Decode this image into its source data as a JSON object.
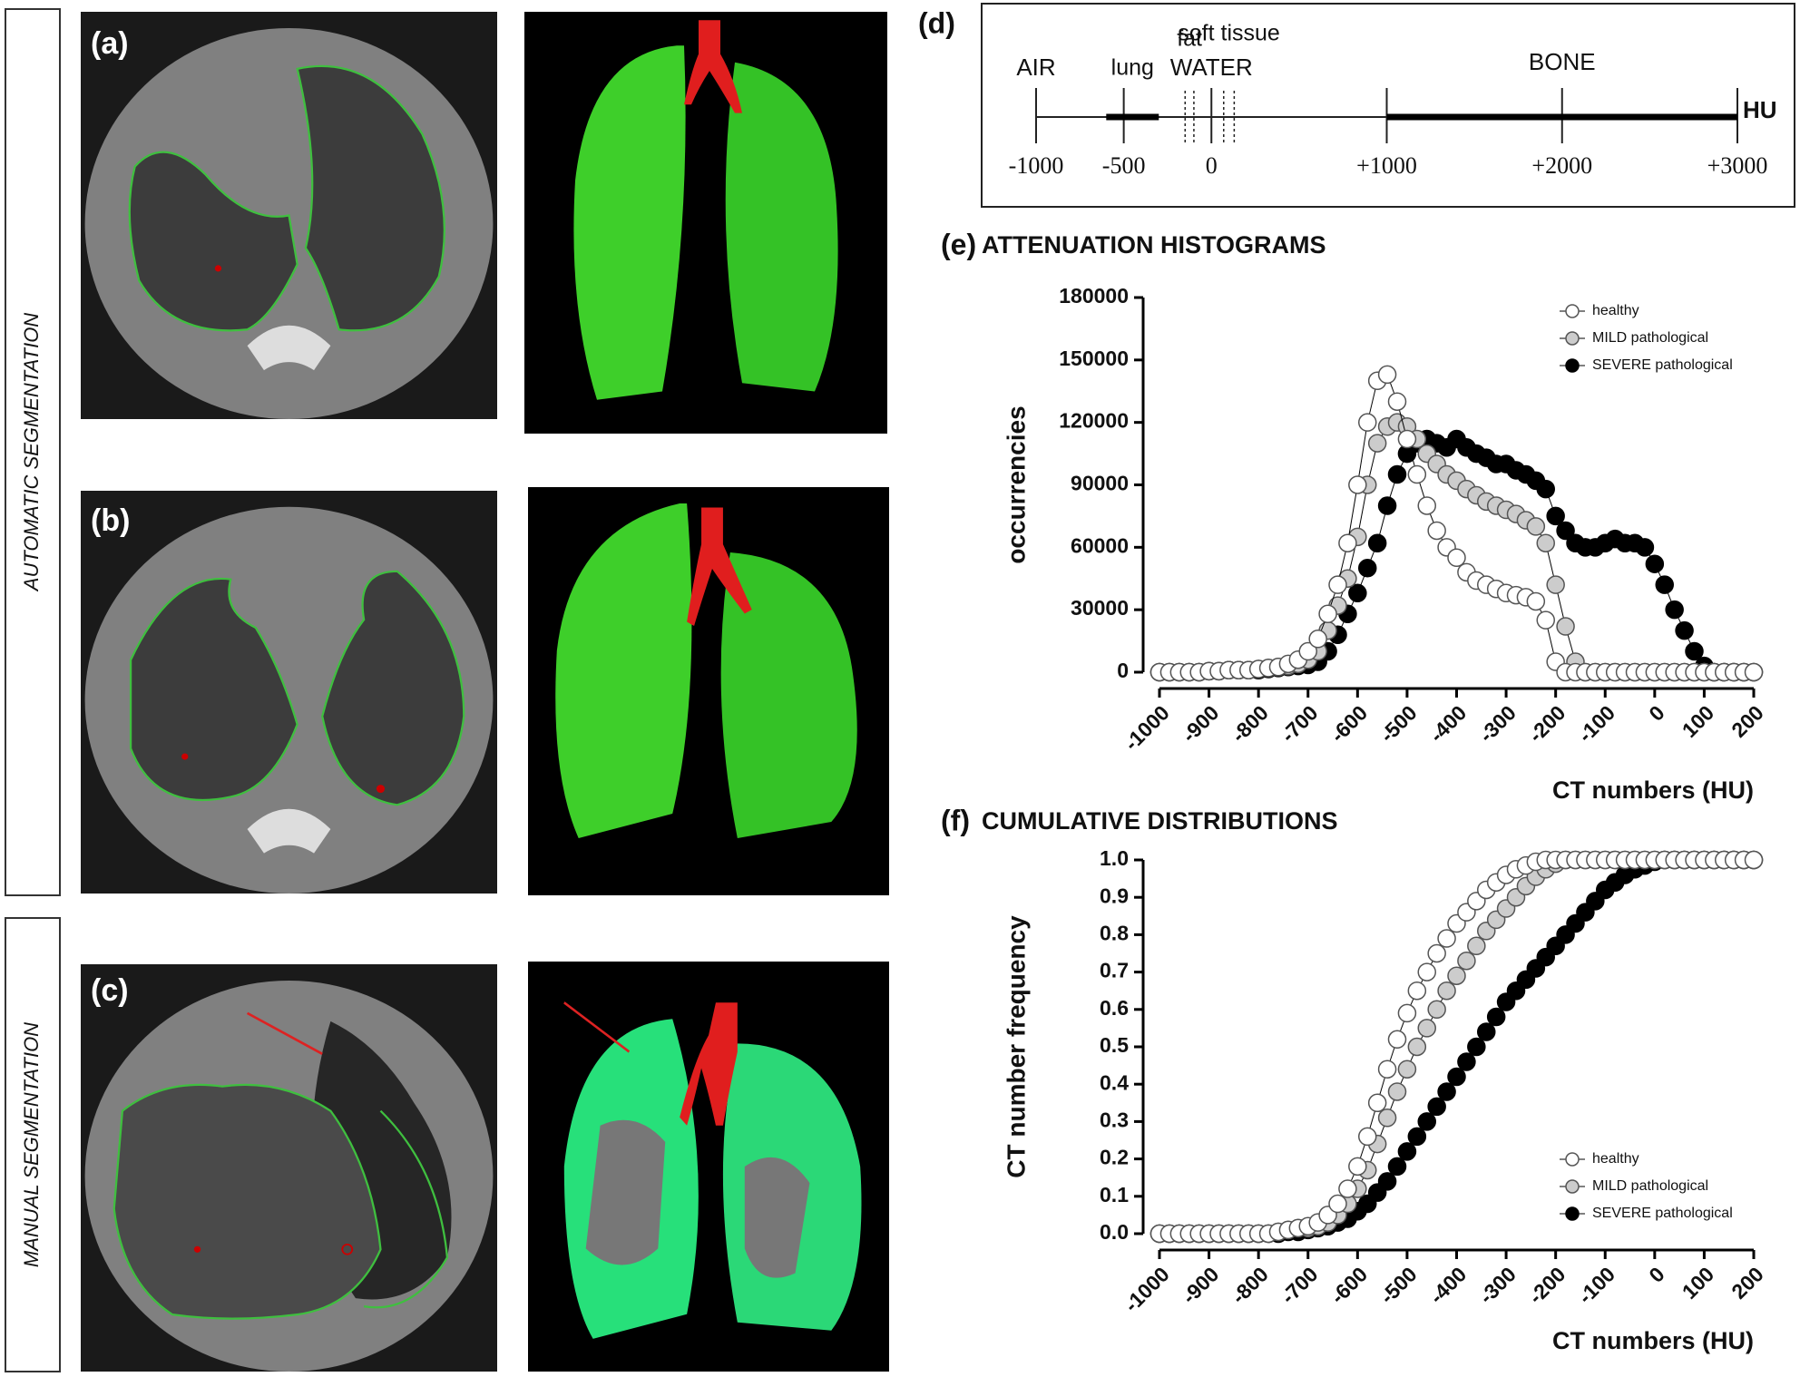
{
  "side_labels": [
    "AUTOMATIC SEGMENTATION",
    "MANUAL SEGMENTATION"
  ],
  "panels": [
    "(a)",
    "(b)",
    "(c)"
  ],
  "scale_panel": {
    "panel": "(d)",
    "unit": "HU",
    "xlim": [
      -1000,
      3000
    ],
    "ticks": [
      -1000,
      -500,
      0,
      {
        "value": 1000,
        "label": "+1000"
      },
      {
        "value": 2000,
        "label": "+2000"
      },
      {
        "value": 3000,
        "label": "+3000"
      }
    ],
    "markers": [
      {
        "label": "AIR",
        "value": -1000
      },
      {
        "label": "WATER",
        "value": 0
      }
    ],
    "regions": [
      {
        "label": "lung",
        "range": [
          -600,
          -300
        ],
        "style": "thick"
      },
      {
        "label": "fat",
        "range": [
          -150,
          -100
        ],
        "style": "dashed"
      },
      {
        "label": "soft tissue",
        "range": [
          70,
          130
        ],
        "style": "dashed"
      },
      {
        "label": "BONE",
        "range": [
          1000,
          3000
        ],
        "style": "thick"
      }
    ]
  },
  "chart_data": [
    {
      "type": "line",
      "panel": "(e)",
      "title": "ATTENUATION HISTOGRAMS",
      "x_label": "CT numbers (HU)",
      "y_label": "occurrencies",
      "legend": "upper right",
      "xlim": [
        -1000,
        200
      ],
      "ylim": [
        0,
        180000
      ],
      "xticks": [
        -1000,
        -900,
        -800,
        -700,
        -600,
        -500,
        -400,
        -300,
        -200,
        -100,
        0,
        100,
        200
      ],
      "yticks": [
        0,
        30000,
        60000,
        90000,
        120000,
        150000,
        180000
      ],
      "x": [
        -1000,
        -980,
        -960,
        -940,
        -920,
        -900,
        -880,
        -860,
        -840,
        -820,
        -800,
        -780,
        -760,
        -740,
        -720,
        -700,
        -680,
        -660,
        -640,
        -620,
        -600,
        -580,
        -560,
        -540,
        -520,
        -500,
        -480,
        -460,
        -440,
        -420,
        -400,
        -380,
        -360,
        -340,
        -320,
        -300,
        -280,
        -260,
        -240,
        -220,
        -200,
        -180,
        -160,
        -140,
        -120,
        -100,
        -80,
        -60,
        -40,
        -20,
        0,
        20,
        40,
        60,
        80,
        100,
        120,
        140,
        160,
        180,
        200
      ],
      "series": [
        {
          "name": "healthy",
          "color": "#ffffff",
          "edge": "#555555",
          "values": [
            0,
            0,
            0,
            0,
            0,
            500,
            500,
            1000,
            1000,
            1000,
            1500,
            2000,
            2500,
            4000,
            6000,
            10000,
            16000,
            28000,
            42000,
            62000,
            90000,
            120000,
            140000,
            143000,
            130000,
            112000,
            95000,
            80000,
            68000,
            60000,
            55000,
            48000,
            44000,
            42000,
            40000,
            38000,
            37000,
            36000,
            34000,
            25000,
            5000,
            0,
            0,
            0,
            0,
            0,
            0,
            0,
            0,
            0,
            0,
            0,
            0,
            0,
            0,
            0,
            0,
            0,
            0,
            0,
            0
          ]
        },
        {
          "name": "MILD pathological",
          "color": "#cccccc",
          "edge": "#555555",
          "values": [
            0,
            0,
            0,
            0,
            0,
            500,
            500,
            1000,
            1000,
            1000,
            1500,
            2000,
            2500,
            3000,
            4000,
            6000,
            10000,
            20000,
            32000,
            45000,
            65000,
            90000,
            110000,
            118000,
            120000,
            118000,
            112000,
            105000,
            100000,
            95000,
            92000,
            88000,
            85000,
            82000,
            80000,
            78000,
            76000,
            73000,
            70000,
            62000,
            42000,
            22000,
            5000,
            0,
            0,
            0,
            0,
            0,
            0,
            0,
            0,
            0,
            0,
            0,
            0,
            0,
            0,
            0,
            0,
            0,
            0
          ]
        },
        {
          "name": "SEVERE pathological",
          "color": "#000000",
          "edge": "#000000",
          "values": [
            0,
            0,
            0,
            0,
            0,
            500,
            500,
            1000,
            1000,
            1000,
            1000,
            1500,
            2000,
            2500,
            3000,
            3500,
            5000,
            10000,
            18000,
            28000,
            38000,
            50000,
            62000,
            80000,
            95000,
            105000,
            110000,
            112000,
            110000,
            108000,
            112000,
            108000,
            105000,
            103000,
            100000,
            100000,
            97000,
            95000,
            92000,
            88000,
            75000,
            68000,
            62000,
            60000,
            60000,
            62000,
            64000,
            62000,
            62000,
            60000,
            52000,
            42000,
            30000,
            20000,
            10000,
            3000,
            0,
            0,
            0,
            0,
            0
          ]
        }
      ]
    },
    {
      "type": "line",
      "panel": "(f)",
      "title": "CUMULATIVE DISTRIBUTIONS",
      "x_label": "CT numbers (HU)",
      "y_label": "CT number frequency",
      "legend": "lower right",
      "xlim": [
        -1000,
        200
      ],
      "ylim": [
        0,
        1
      ],
      "xticks": [
        -1000,
        -900,
        -800,
        -700,
        -600,
        -500,
        -400,
        -300,
        -200,
        -100,
        0,
        100,
        200
      ],
      "yticks": [
        {
          "value": 0,
          "label": "0.0"
        },
        0.1,
        0.2,
        0.3,
        0.4,
        0.5,
        0.6,
        0.7,
        0.8,
        0.9,
        {
          "value": 1,
          "label": "1.0"
        }
      ],
      "x": [
        -1000,
        -980,
        -960,
        -940,
        -920,
        -900,
        -880,
        -860,
        -840,
        -820,
        -800,
        -780,
        -760,
        -740,
        -720,
        -700,
        -680,
        -660,
        -640,
        -620,
        -600,
        -580,
        -560,
        -540,
        -520,
        -500,
        -480,
        -460,
        -440,
        -420,
        -400,
        -380,
        -360,
        -340,
        -320,
        -300,
        -280,
        -260,
        -240,
        -220,
        -200,
        -180,
        -160,
        -140,
        -120,
        -100,
        -80,
        -60,
        -40,
        -20,
        0,
        20,
        40,
        60,
        80,
        100,
        120,
        140,
        160,
        180,
        200
      ],
      "series": [
        {
          "name": "healthy",
          "color": "#ffffff",
          "edge": "#555555",
          "values": [
            0,
            0,
            0,
            0,
            0,
            0,
            0,
            0,
            0,
            0,
            0,
            0,
            0.005,
            0.01,
            0.015,
            0.02,
            0.03,
            0.05,
            0.08,
            0.12,
            0.18,
            0.26,
            0.35,
            0.44,
            0.52,
            0.59,
            0.65,
            0.7,
            0.75,
            0.79,
            0.83,
            0.86,
            0.89,
            0.92,
            0.94,
            0.96,
            0.975,
            0.985,
            0.995,
            1,
            1,
            1,
            1,
            1,
            1,
            1,
            1,
            1,
            1,
            1,
            1,
            1,
            1,
            1,
            1,
            1,
            1,
            1,
            1,
            1,
            1
          ]
        },
        {
          "name": "MILD pathological",
          "color": "#cccccc",
          "edge": "#555555",
          "values": [
            0,
            0,
            0,
            0,
            0,
            0,
            0,
            0,
            0,
            0,
            0,
            0,
            0.005,
            0.01,
            0.015,
            0.015,
            0.02,
            0.03,
            0.05,
            0.08,
            0.12,
            0.17,
            0.24,
            0.31,
            0.38,
            0.44,
            0.5,
            0.55,
            0.6,
            0.65,
            0.69,
            0.73,
            0.77,
            0.81,
            0.84,
            0.87,
            0.9,
            0.93,
            0.955,
            0.975,
            0.99,
            1,
            1,
            1,
            1,
            1,
            1,
            1,
            1,
            1,
            1,
            1,
            1,
            1,
            1,
            1,
            1,
            1,
            1,
            1,
            1
          ]
        },
        {
          "name": "SEVERE pathological",
          "color": "#000000",
          "edge": "#000000",
          "values": [
            0,
            0,
            0,
            0,
            0,
            0,
            0,
            0,
            0,
            0,
            0,
            0,
            0,
            0.005,
            0.005,
            0.01,
            0.015,
            0.02,
            0.03,
            0.04,
            0.06,
            0.08,
            0.11,
            0.14,
            0.18,
            0.22,
            0.26,
            0.3,
            0.34,
            0.38,
            0.42,
            0.46,
            0.5,
            0.54,
            0.58,
            0.62,
            0.65,
            0.68,
            0.71,
            0.74,
            0.77,
            0.8,
            0.83,
            0.86,
            0.89,
            0.92,
            0.94,
            0.96,
            0.975,
            0.985,
            0.995,
            1,
            1,
            1,
            1,
            1,
            1,
            1,
            1,
            1,
            1
          ]
        }
      ]
    }
  ]
}
